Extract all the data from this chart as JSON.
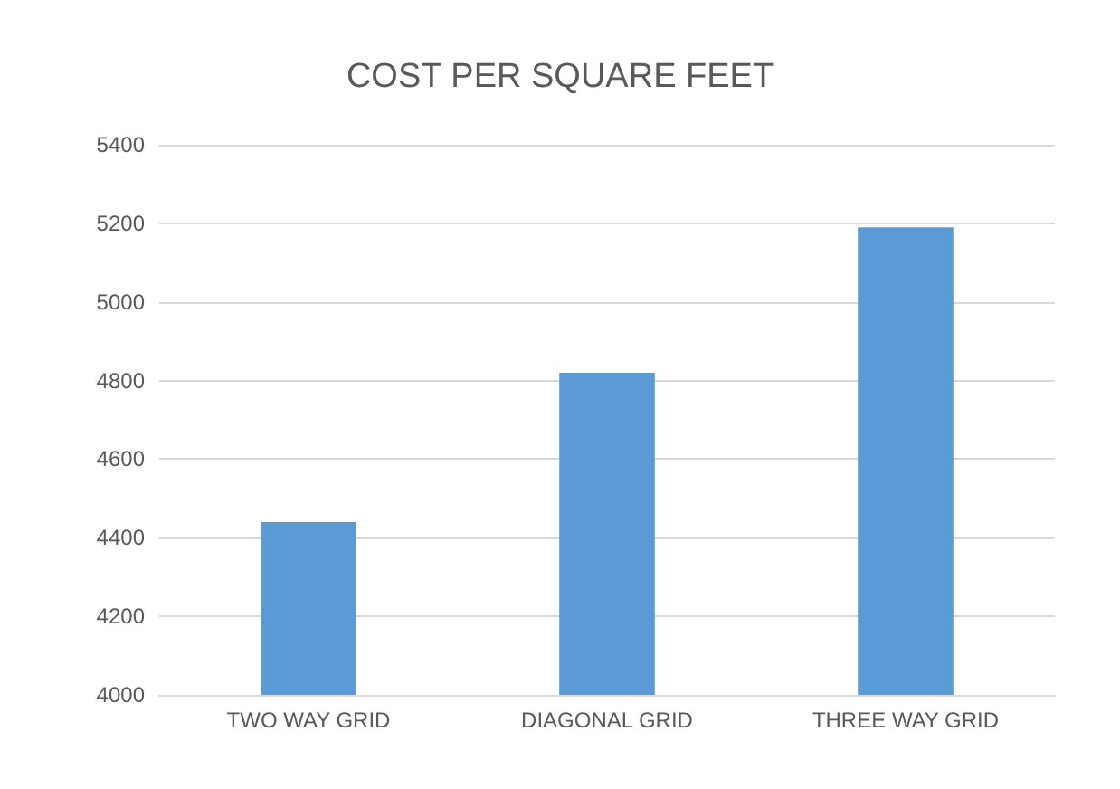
{
  "chart_data": {
    "type": "bar",
    "title": "COST PER SQUARE FEET",
    "categories": [
      "TWO WAY GRID",
      "DIAGONAL GRID",
      "THREE WAY GRID"
    ],
    "values": [
      4440,
      4820,
      5190
    ],
    "color": "#5b9bd5",
    "ylim": [
      4000,
      5400
    ],
    "yticks": [
      4000,
      4200,
      4400,
      4600,
      4800,
      5000,
      5200,
      5400
    ],
    "grid": "y"
  }
}
